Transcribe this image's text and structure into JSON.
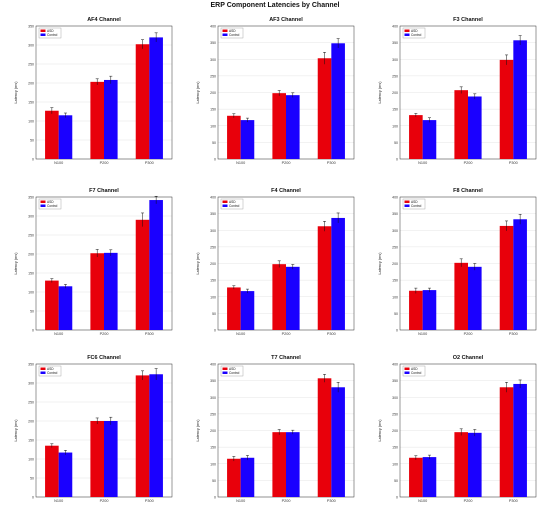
{
  "title": "ERP Component Latencies by Channel",
  "colors": {
    "asd": "#e8000b",
    "control": "#1a00ff",
    "axis": "#333333",
    "grid": "#dddddd",
    "error": "#111111"
  },
  "chart_data": [
    {
      "type": "bar",
      "title": "AF4 Channel",
      "ylabel": "Latency (ms)",
      "categories": [
        "N100",
        "P200",
        "P300"
      ],
      "ylim": [
        0,
        350
      ],
      "yticks": [
        0,
        50,
        100,
        150,
        200,
        250,
        300,
        350
      ],
      "series": [
        {
          "name": "ASD",
          "values": [
            127,
            203,
            302
          ],
          "errors": [
            8,
            8,
            12
          ]
        },
        {
          "name": "Control",
          "values": [
            115,
            208,
            320
          ],
          "errors": [
            6,
            10,
            12
          ]
        }
      ]
    },
    {
      "type": "bar",
      "title": "AF3 Channel",
      "ylabel": "Latency (ms)",
      "categories": [
        "N100",
        "P200",
        "P300"
      ],
      "ylim": [
        0,
        400
      ],
      "yticks": [
        0,
        50,
        100,
        150,
        200,
        250,
        300,
        350,
        400
      ],
      "series": [
        {
          "name": "ASD",
          "values": [
            130,
            198,
            303
          ],
          "errors": [
            6,
            8,
            18
          ]
        },
        {
          "name": "Control",
          "values": [
            117,
            192,
            348
          ],
          "errors": [
            6,
            7,
            14
          ]
        }
      ]
    },
    {
      "type": "bar",
      "title": "F3 Channel",
      "ylabel": "Latency (ms)",
      "categories": [
        "N100",
        "P200",
        "P300"
      ],
      "ylim": [
        0,
        400
      ],
      "yticks": [
        0,
        50,
        100,
        150,
        200,
        250,
        300,
        350,
        400
      ],
      "series": [
        {
          "name": "ASD",
          "values": [
            132,
            207,
            298
          ],
          "errors": [
            5,
            10,
            15
          ]
        },
        {
          "name": "Control",
          "values": [
            117,
            188,
            357
          ],
          "errors": [
            7,
            8,
            14
          ]
        }
      ]
    },
    {
      "type": "bar",
      "title": "F7 Channel",
      "ylabel": "Latency (ms)",
      "categories": [
        "N100",
        "P200",
        "P300"
      ],
      "ylim": [
        0,
        350
      ],
      "yticks": [
        0,
        50,
        100,
        150,
        200,
        250,
        300,
        350
      ],
      "series": [
        {
          "name": "ASD",
          "values": [
            130,
            202,
            290
          ],
          "errors": [
            5,
            10,
            18
          ]
        },
        {
          "name": "Control",
          "values": [
            115,
            203,
            342
          ],
          "errors": [
            5,
            8,
            10
          ]
        }
      ]
    },
    {
      "type": "bar",
      "title": "F4 Channel",
      "ylabel": "Latency (ms)",
      "categories": [
        "N100",
        "P200",
        "P300"
      ],
      "ylim": [
        0,
        400
      ],
      "yticks": [
        0,
        50,
        100,
        150,
        200,
        250,
        300,
        350,
        400
      ],
      "series": [
        {
          "name": "ASD",
          "values": [
            128,
            198,
            312
          ],
          "errors": [
            5,
            10,
            15
          ]
        },
        {
          "name": "Control",
          "values": [
            117,
            190,
            337
          ],
          "errors": [
            6,
            7,
            15
          ]
        }
      ]
    },
    {
      "type": "bar",
      "title": "F8 Channel",
      "ylabel": "Latency (ms)",
      "categories": [
        "N100",
        "P200",
        "P300"
      ],
      "ylim": [
        0,
        400
      ],
      "yticks": [
        0,
        50,
        100,
        150,
        200,
        250,
        300,
        350,
        400
      ],
      "series": [
        {
          "name": "ASD",
          "values": [
            118,
            202,
            313
          ],
          "errors": [
            8,
            12,
            15
          ]
        },
        {
          "name": "Control",
          "values": [
            120,
            190,
            333
          ],
          "errors": [
            6,
            10,
            15
          ]
        }
      ]
    },
    {
      "type": "bar",
      "title": "FC6 Channel",
      "ylabel": "Latency (ms)",
      "categories": [
        "N100",
        "P200",
        "P300"
      ],
      "ylim": [
        0,
        350
      ],
      "yticks": [
        0,
        50,
        100,
        150,
        200,
        250,
        300,
        350
      ],
      "series": [
        {
          "name": "ASD",
          "values": [
            135,
            200,
            320
          ],
          "errors": [
            5,
            8,
            12
          ]
        },
        {
          "name": "Control",
          "values": [
            117,
            200,
            323
          ],
          "errors": [
            6,
            10,
            15
          ]
        }
      ]
    },
    {
      "type": "bar",
      "title": "T7 Channel",
      "ylabel": "Latency (ms)",
      "categories": [
        "N100",
        "P200",
        "P300"
      ],
      "ylim": [
        0,
        400
      ],
      "yticks": [
        0,
        50,
        100,
        150,
        200,
        250,
        300,
        350,
        400
      ],
      "series": [
        {
          "name": "ASD",
          "values": [
            115,
            195,
            357
          ],
          "errors": [
            7,
            8,
            12
          ]
        },
        {
          "name": "Control",
          "values": [
            118,
            195,
            330
          ],
          "errors": [
            7,
            6,
            15
          ]
        }
      ]
    },
    {
      "type": "bar",
      "title": "O2 Channel",
      "ylabel": "Latency (ms)",
      "categories": [
        "N100",
        "P200",
        "P300"
      ],
      "ylim": [
        0,
        400
      ],
      "yticks": [
        0,
        50,
        100,
        150,
        200,
        250,
        300,
        350,
        400
      ],
      "series": [
        {
          "name": "ASD",
          "values": [
            118,
            195,
            330
          ],
          "errors": [
            6,
            10,
            15
          ]
        },
        {
          "name": "Control",
          "values": [
            120,
            193,
            340
          ],
          "errors": [
            6,
            10,
            12
          ]
        }
      ]
    }
  ]
}
